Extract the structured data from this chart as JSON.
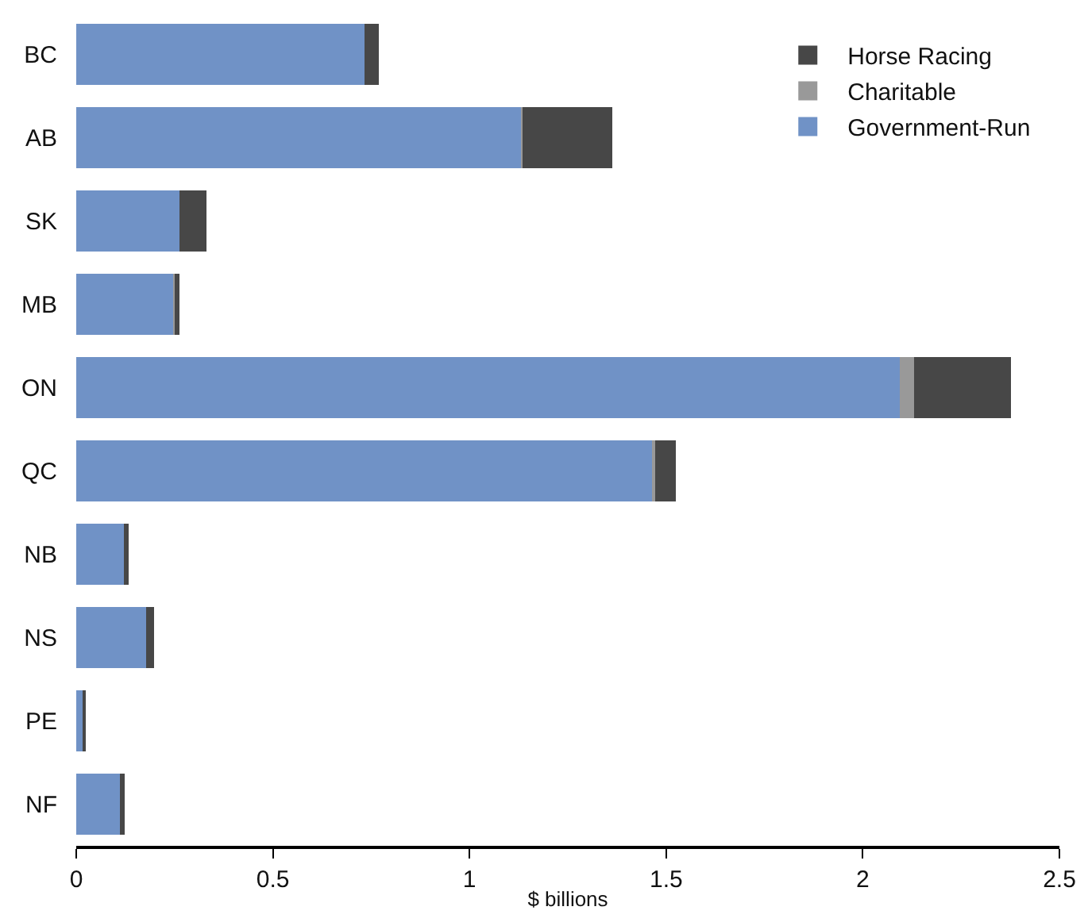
{
  "chart_data": {
    "type": "bar",
    "orientation": "horizontal",
    "stacked": true,
    "xlabel": "$ billions",
    "categories": [
      "BC",
      "AB",
      "SK",
      "MB",
      "ON",
      "QC",
      "NB",
      "NS",
      "PE",
      "NF"
    ],
    "series": [
      {
        "name": "Government-Run",
        "color": "#7092c6",
        "values": [
          0.733,
          1.131,
          0.263,
          0.248,
          2.094,
          1.464,
          0.121,
          0.177,
          0.018,
          0.112
        ]
      },
      {
        "name": "Charitable",
        "color": "#999999",
        "values": [
          null,
          0.003,
          0,
          0.002,
          0.037,
          0.009,
          null,
          null,
          0,
          0
        ]
      },
      {
        "name": "Horse Racing",
        "color": "#474747",
        "values": [
          0.037,
          0.229,
          0.068,
          0.013,
          0.245,
          0.052,
          0.013,
          0.021,
          0.003,
          0.012
        ]
      }
    ],
    "xlim": [
      0,
      2.5
    ],
    "xticks": [
      0,
      0.5,
      1,
      1.5,
      2,
      2.5
    ],
    "legend": "top right"
  }
}
